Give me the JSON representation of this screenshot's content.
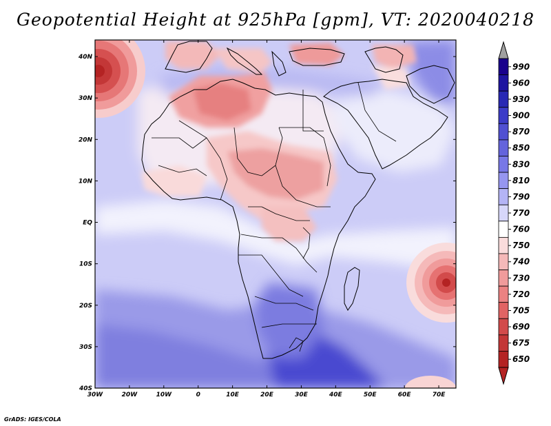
{
  "title": "Geopotential Height at 925hPa [gpm], VT: 2020040218",
  "credit": "GrADS: IGES/COLA",
  "map": {
    "variable": "Geopotential Height",
    "level": "925hPa",
    "units": "gpm",
    "valid_time": "2020040218",
    "region": "Africa",
    "lon_range": [
      -30,
      75
    ],
    "lat_range": [
      -40,
      44
    ],
    "x_ticks": [
      {
        "value": -30,
        "label": "30W"
      },
      {
        "value": -20,
        "label": "20W"
      },
      {
        "value": -10,
        "label": "10W"
      },
      {
        "value": 0,
        "label": "0"
      },
      {
        "value": 10,
        "label": "10E"
      },
      {
        "value": 20,
        "label": "20E"
      },
      {
        "value": 30,
        "label": "30E"
      },
      {
        "value": 40,
        "label": "40E"
      },
      {
        "value": 50,
        "label": "50E"
      },
      {
        "value": 60,
        "label": "60E"
      },
      {
        "value": 70,
        "label": "70E"
      }
    ],
    "y_ticks": [
      {
        "value": 40,
        "label": "40N"
      },
      {
        "value": 30,
        "label": "30N"
      },
      {
        "value": 20,
        "label": "20N"
      },
      {
        "value": 10,
        "label": "10N"
      },
      {
        "value": 0,
        "label": "EQ"
      },
      {
        "value": -10,
        "label": "10S"
      },
      {
        "value": -20,
        "label": "20S"
      },
      {
        "value": -30,
        "label": "30S"
      },
      {
        "value": -40,
        "label": "40S"
      }
    ],
    "features": [
      {
        "name": "high-south-africa-east",
        "kind": "high",
        "lon": 32,
        "lat": -36,
        "value": 880
      },
      {
        "name": "low-atlantic-azores",
        "kind": "low",
        "lon": -30,
        "lat": 37,
        "value": 660
      },
      {
        "name": "low-indian-ocean-mascarene",
        "kind": "low",
        "lon": 72,
        "lat": -15,
        "value": 670
      },
      {
        "name": "low-north-africa",
        "kind": "low",
        "lon": 2,
        "lat": 30,
        "value": 730
      },
      {
        "name": "low-sahel-sudan",
        "kind": "low",
        "lon": 22,
        "lat": 12,
        "value": 740
      }
    ]
  },
  "colorbar": {
    "levels": [
      {
        "label": "990",
        "color": "#19008c"
      },
      {
        "label": "960",
        "color": "#1e14a0"
      },
      {
        "label": "930",
        "color": "#2828b4"
      },
      {
        "label": "900",
        "color": "#3c3cc8"
      },
      {
        "label": "870",
        "color": "#5050d2"
      },
      {
        "label": "850",
        "color": "#6464dc"
      },
      {
        "label": "830",
        "color": "#7878e6"
      },
      {
        "label": "810",
        "color": "#9696f0"
      },
      {
        "label": "790",
        "color": "#b4b4f5"
      },
      {
        "label": "770",
        "color": "#d7d7fa"
      },
      {
        "label": "760",
        "color": "#ffffff"
      },
      {
        "label": "750",
        "color": "#fadcdc"
      },
      {
        "label": "740",
        "color": "#f5b9b9"
      },
      {
        "label": "730",
        "color": "#f09b9b"
      },
      {
        "label": "720",
        "color": "#eb8282"
      },
      {
        "label": "705",
        "color": "#e16464"
      },
      {
        "label": "690",
        "color": "#d24b4b"
      },
      {
        "label": "675",
        "color": "#c33737"
      },
      {
        "label": "650",
        "color": "#b42323"
      }
    ],
    "over_color": "#a0a0a0",
    "under_color": "#b42323"
  }
}
